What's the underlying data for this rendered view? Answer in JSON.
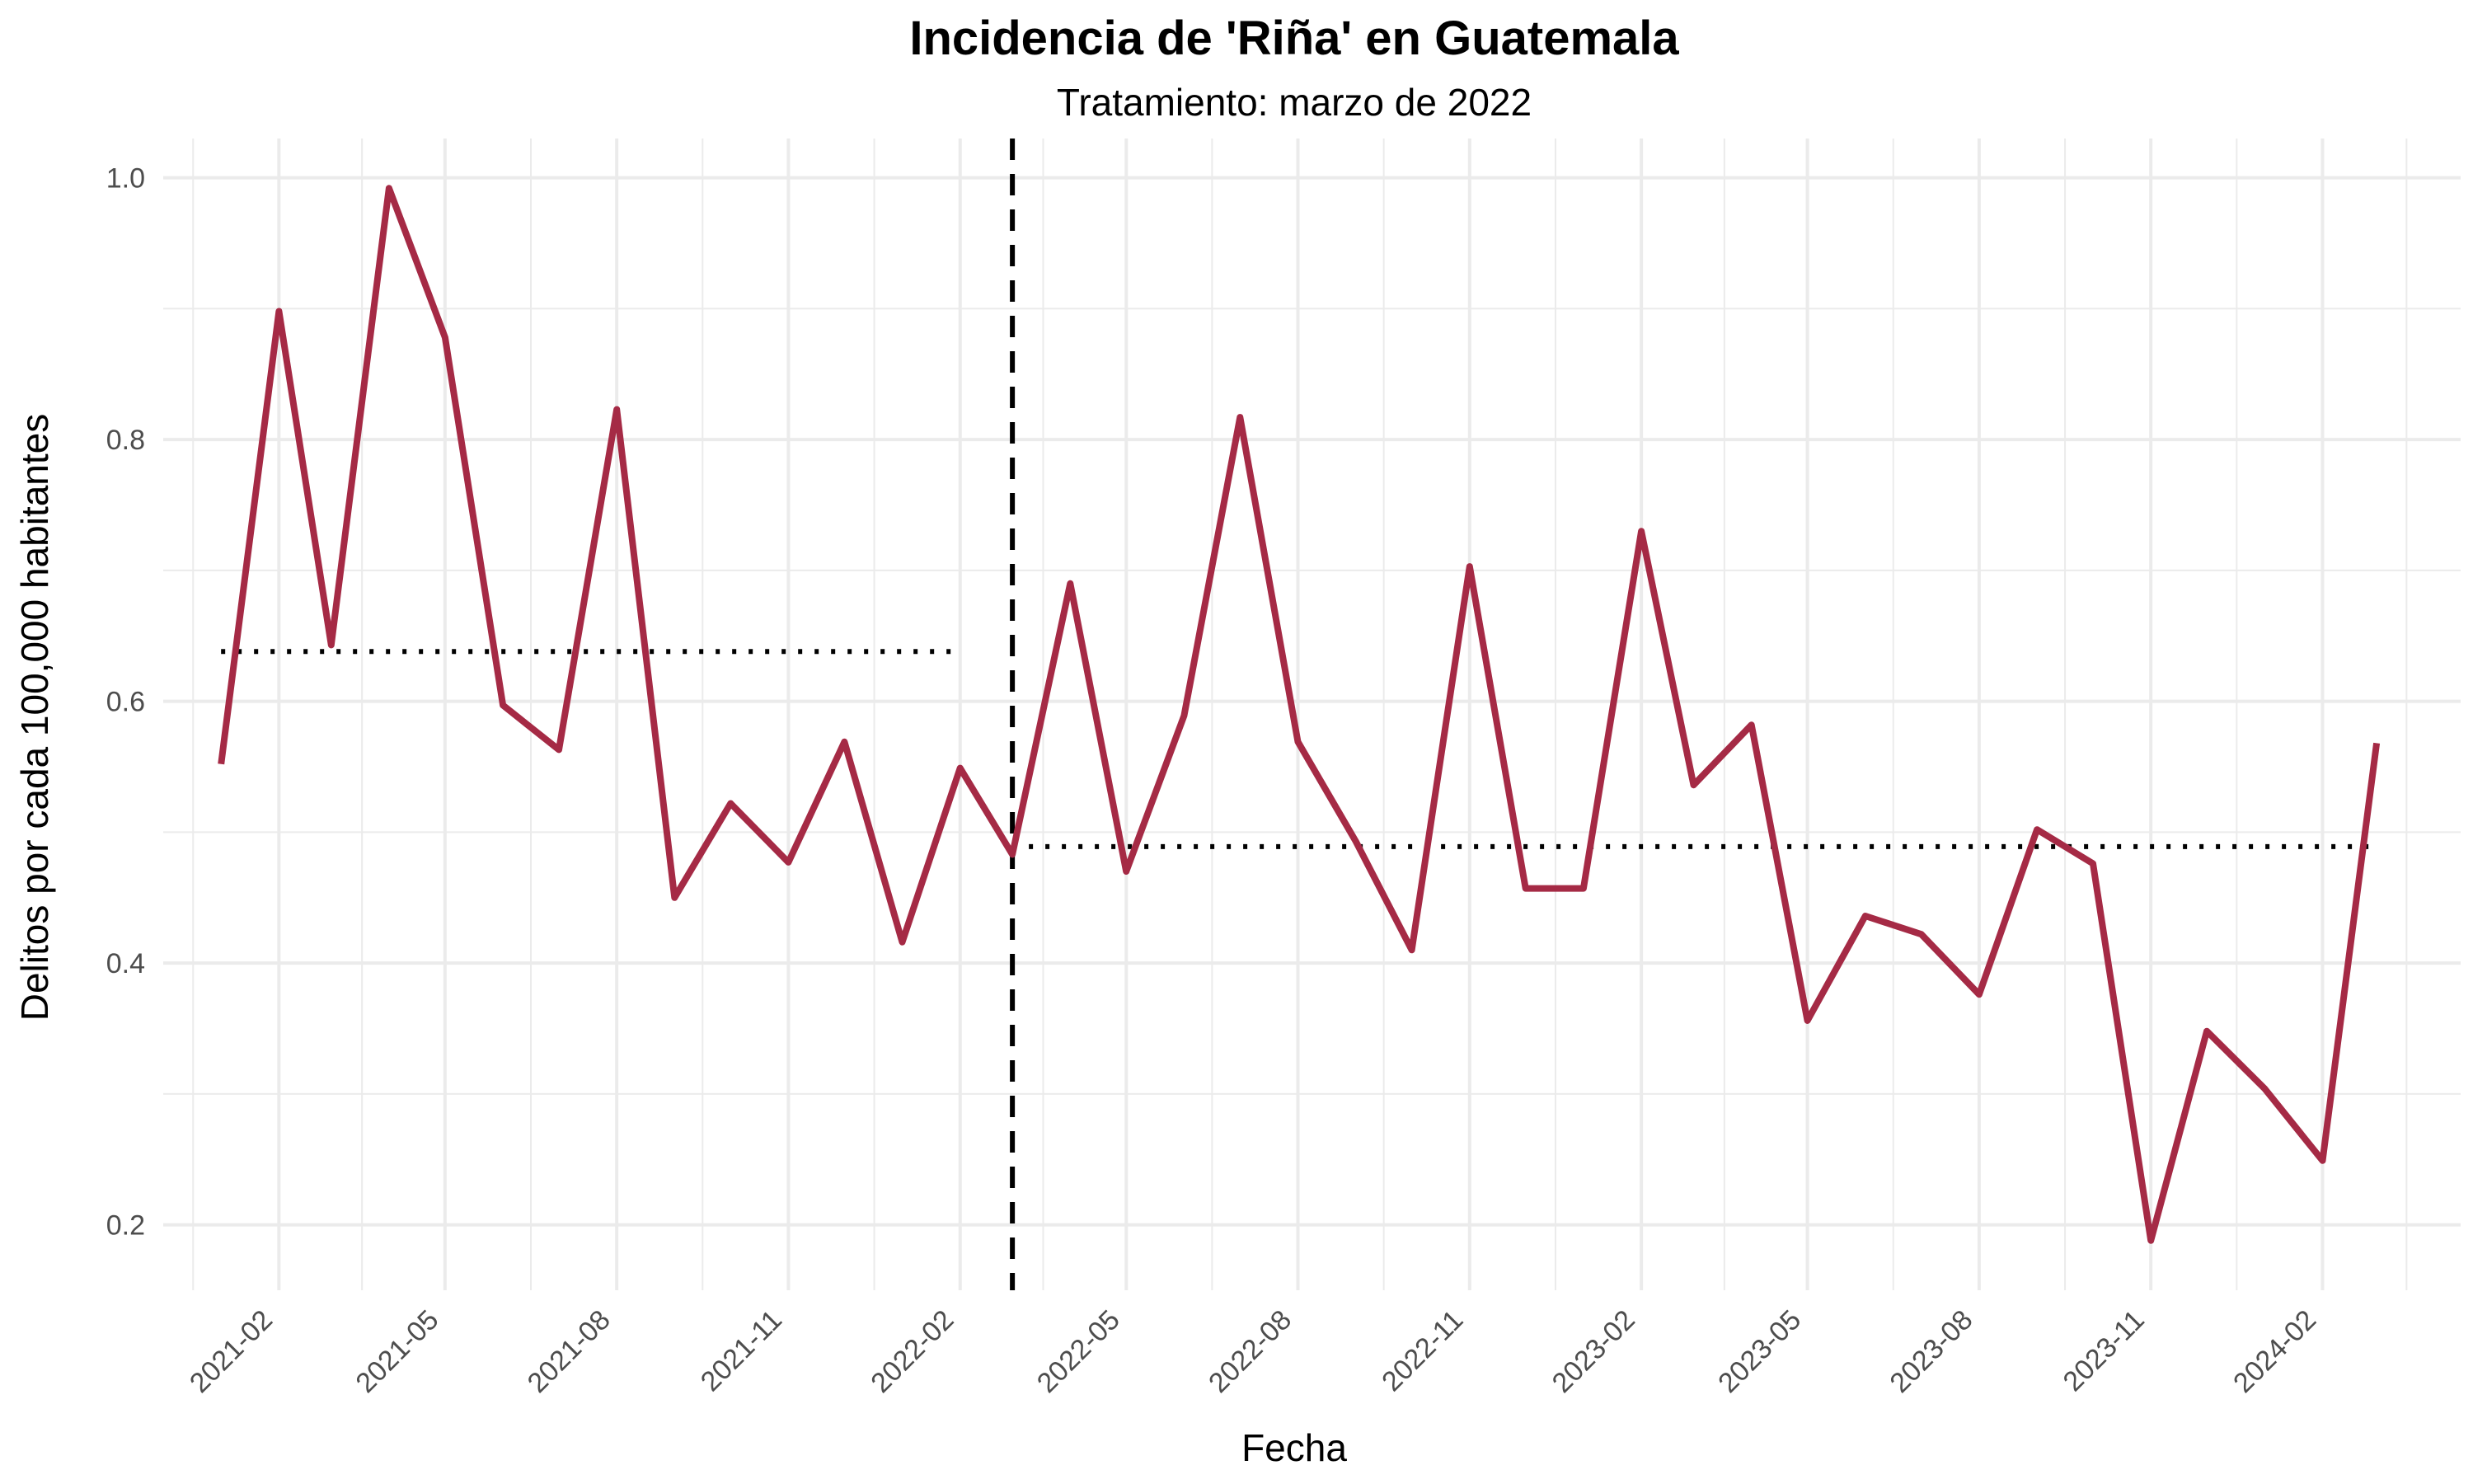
{
  "chart_data": {
    "type": "line",
    "title": "Incidencia de 'Riña' en Guatemala",
    "subtitle": "Tratamiento: marzo de 2022",
    "xlabel": "Fecha",
    "ylabel": "Delitos por cada 100,000 habitantes",
    "x_ticks": [
      "2021-02",
      "2021-05",
      "2021-08",
      "2021-11",
      "2022-02",
      "2022-05",
      "2022-08",
      "2022-11",
      "2023-02",
      "2023-05",
      "2023-08",
      "2023-11",
      "2024-02"
    ],
    "y_ticks": [
      "0.2",
      "0.4",
      "0.6",
      "0.8",
      "1.0"
    ],
    "ylim": [
      0.15,
      1.03
    ],
    "xlim": [
      "2020-12-01",
      "2024-04-15"
    ],
    "grid": true,
    "series": [
      {
        "color": "#A52A45",
        "x": [
          "2021-01",
          "2021-02",
          "2021-03",
          "2021-04",
          "2021-05",
          "2021-06",
          "2021-07",
          "2021-08",
          "2021-09",
          "2021-10",
          "2021-11",
          "2021-12",
          "2022-01",
          "2022-02",
          "2022-03",
          "2022-04",
          "2022-05",
          "2022-06",
          "2022-07",
          "2022-08",
          "2022-09",
          "2022-10",
          "2022-11",
          "2022-12",
          "2023-01",
          "2023-02",
          "2023-03",
          "2023-04",
          "2023-05",
          "2023-06",
          "2023-07",
          "2023-08",
          "2023-09",
          "2023-10",
          "2023-11",
          "2023-12",
          "2024-01",
          "2024-02",
          "2024-03"
        ],
        "values": [
          0.552,
          0.898,
          0.643,
          0.992,
          0.878,
          0.597,
          0.563,
          0.823,
          0.45,
          0.522,
          0.477,
          0.569,
          0.416,
          0.549,
          0.483,
          0.69,
          0.47,
          0.589,
          0.817,
          0.569,
          0.493,
          0.41,
          0.703,
          0.457,
          0.457,
          0.73,
          0.536,
          0.582,
          0.356,
          0.436,
          0.422,
          0.376,
          0.502,
          0.476,
          0.188,
          0.348,
          0.304,
          0.249,
          0.568
        ]
      }
    ],
    "treatment_date": "2022-03",
    "pre_mean": {
      "value": 0.638,
      "from": "2021-01",
      "to": "2022-02"
    },
    "post_mean": {
      "value": 0.489,
      "from": "2022-03",
      "to": "2024-03"
    },
    "colors": {
      "line": "#A52A45",
      "reference": "#000000",
      "grid": "#EBEBEB"
    }
  }
}
